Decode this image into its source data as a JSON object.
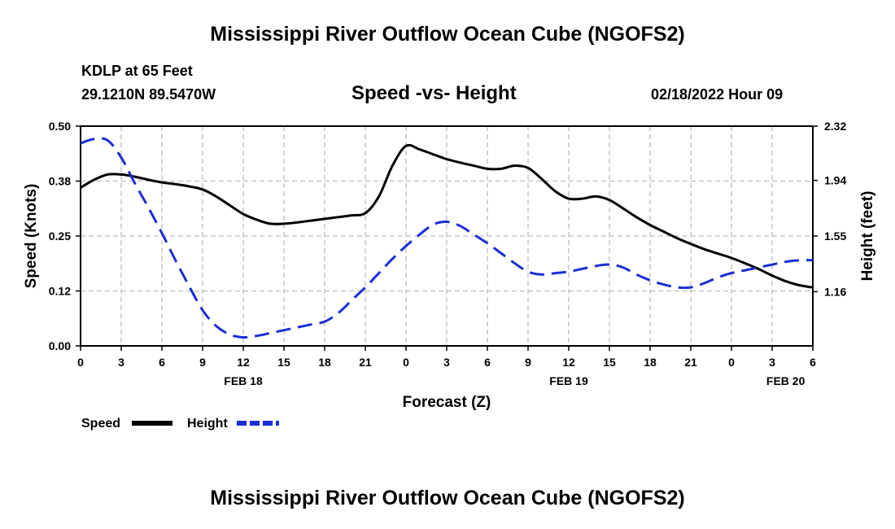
{
  "header": {
    "title": "Mississippi River Outflow Ocean Cube (NGOFS2)",
    "station": "KDLP at 65 Feet",
    "coords": "29.1210N  89.5470W",
    "subtitle": "Speed -vs- Height",
    "datetime": "02/18/2022 Hour 09"
  },
  "footer": {
    "title": "Mississippi River Outflow Ocean Cube (NGOFS2)"
  },
  "colors": {
    "speed": "#000000",
    "height": "#1a2ed6",
    "grid": "#bdbdbd"
  },
  "chart_data": {
    "type": "line",
    "title": "Speed -vs- Height",
    "xlabel": "Forecast (Z)",
    "ylabel": "Speed (Knots)",
    "ylabel_right": "Height (feet)",
    "x_range_hours": [
      0,
      54
    ],
    "x_tick_hours": [
      0,
      3,
      6,
      9,
      12,
      15,
      18,
      21,
      24,
      27,
      30,
      33,
      36,
      39,
      42,
      45,
      48,
      51,
      54
    ],
    "x_tick_labels": [
      "0",
      "3",
      "6",
      "9",
      "12",
      "15",
      "18",
      "21",
      "0",
      "3",
      "6",
      "9",
      "12",
      "15",
      "18",
      "21",
      "0",
      "3",
      "6"
    ],
    "day_labels": [
      {
        "hour": 12,
        "label": "FEB 18"
      },
      {
        "hour": 36,
        "label": "FEB 19"
      },
      {
        "hour": 52,
        "label": "FEB 20"
      }
    ],
    "ylim_left": [
      0,
      0.5
    ],
    "y_ticks_left": [
      0.0,
      0.125,
      0.25,
      0.375,
      0.5
    ],
    "y_tick_labels_left": [
      "0.00",
      "0.12",
      "0.25",
      "0.38",
      "0.50"
    ],
    "ylim_right": [
      0.78,
      2.32
    ],
    "y_tick_labels_right": [
      "1.16",
      "1.55",
      "1.94",
      "2.32"
    ],
    "grid": true,
    "legend_position": "bottom-left",
    "series": [
      {
        "name": "Speed",
        "axis": "left",
        "style": "solid",
        "x": [
          0,
          1,
          2,
          3,
          4,
          5,
          6,
          7,
          8,
          9,
          10,
          11,
          12,
          13,
          14,
          15,
          16,
          17,
          18,
          19,
          20,
          21,
          22,
          23,
          24,
          25,
          26,
          27,
          28,
          29,
          30,
          31,
          32,
          33,
          34,
          35,
          36,
          37,
          38,
          39,
          40,
          41,
          42,
          43,
          44,
          45,
          46,
          47,
          48,
          49,
          50,
          51,
          52,
          53,
          54
        ],
        "values": [
          0.36,
          0.378,
          0.39,
          0.39,
          0.385,
          0.378,
          0.372,
          0.368,
          0.363,
          0.356,
          0.34,
          0.32,
          0.3,
          0.287,
          0.278,
          0.278,
          0.281,
          0.285,
          0.289,
          0.293,
          0.297,
          0.302,
          0.34,
          0.41,
          0.455,
          0.447,
          0.436,
          0.425,
          0.417,
          0.41,
          0.403,
          0.403,
          0.41,
          0.405,
          0.38,
          0.352,
          0.335,
          0.335,
          0.34,
          0.332,
          0.313,
          0.293,
          0.275,
          0.26,
          0.245,
          0.232,
          0.22,
          0.21,
          0.2,
          0.188,
          0.175,
          0.16,
          0.147,
          0.138,
          0.133
        ]
      },
      {
        "name": "Height",
        "axis": "right",
        "style": "dashed",
        "x": [
          0,
          1,
          2,
          3,
          4,
          5,
          6,
          7,
          8,
          9,
          10,
          11,
          12,
          13,
          14,
          15,
          16,
          17,
          18,
          19,
          20,
          21,
          22,
          23,
          24,
          25,
          26,
          27,
          28,
          29,
          30,
          31,
          32,
          33,
          34,
          35,
          36,
          37,
          38,
          39,
          40,
          41,
          42,
          43,
          44,
          45,
          46,
          47,
          48,
          49,
          50,
          51,
          52,
          53,
          54
        ],
        "values": [
          2.2,
          2.23,
          2.22,
          2.1,
          1.92,
          1.75,
          1.57,
          1.38,
          1.2,
          1.03,
          0.92,
          0.86,
          0.84,
          0.85,
          0.87,
          0.89,
          0.91,
          0.93,
          0.95,
          1.01,
          1.1,
          1.19,
          1.29,
          1.39,
          1.48,
          1.56,
          1.63,
          1.65,
          1.62,
          1.56,
          1.5,
          1.43,
          1.36,
          1.3,
          1.28,
          1.29,
          1.3,
          1.32,
          1.34,
          1.35,
          1.33,
          1.28,
          1.24,
          1.21,
          1.19,
          1.19,
          1.22,
          1.26,
          1.29,
          1.31,
          1.33,
          1.35,
          1.37,
          1.38,
          1.38
        ]
      }
    ]
  }
}
